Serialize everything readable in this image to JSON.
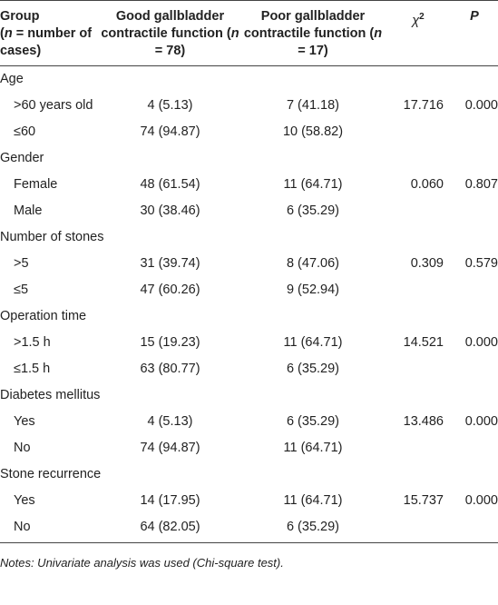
{
  "header": {
    "cells": [
      {
        "parts": [
          "Group",
          "(",
          "n",
          " = number of cases)"
        ]
      },
      {
        "parts": [
          "Good gallbladder contractile function (",
          "n",
          " = 78)"
        ]
      },
      {
        "parts": [
          "Poor gallbladder contractile function (",
          "n",
          " = 17)"
        ]
      },
      {
        "parts": [
          "χ",
          "2"
        ]
      },
      {
        "parts": [
          "P"
        ]
      }
    ]
  },
  "groups": [
    {
      "label": "Age",
      "rows": [
        [
          ">60 years old",
          "4 (5.13)",
          "7 (41.18)",
          "17.716",
          "0.000"
        ],
        [
          "≤60",
          "74 (94.87)",
          "10 (58.82)"
        ]
      ]
    },
    {
      "label": "Gender",
      "rows": [
        [
          "Female",
          "48 (61.54)",
          "11 (64.71)",
          "0.060",
          "0.807"
        ],
        [
          "Male",
          "30 (38.46)",
          "6 (35.29)"
        ]
      ]
    },
    {
      "label": "Number of stones",
      "rows": [
        [
          ">5",
          "31 (39.74)",
          "8 (47.06)",
          "0.309",
          "0.579"
        ],
        [
          "≤5",
          "47 (60.26)",
          "9 (52.94)"
        ]
      ]
    },
    {
      "label": "Operation time",
      "rows": [
        [
          ">1.5 h",
          "15 (19.23)",
          "11 (64.71)",
          "14.521",
          "0.000"
        ],
        [
          "≤1.5 h",
          "63 (80.77)",
          "6 (35.29)"
        ]
      ]
    },
    {
      "label": "Diabetes mellitus",
      "rows": [
        [
          "Yes",
          "4 (5.13)",
          "6 (35.29)",
          "13.486",
          "0.000"
        ],
        [
          "No",
          "74 (94.87)",
          "11 (64.71)"
        ]
      ]
    },
    {
      "label": "Stone recurrence",
      "rows": [
        [
          "Yes",
          "14 (17.95)",
          "11 (64.71)",
          "15.737",
          "0.000"
        ],
        [
          "No",
          "64 (82.05)",
          "6 (35.29)"
        ]
      ]
    }
  ],
  "notes": "Notes: Univariate analysis was used (Chi-square test)."
}
